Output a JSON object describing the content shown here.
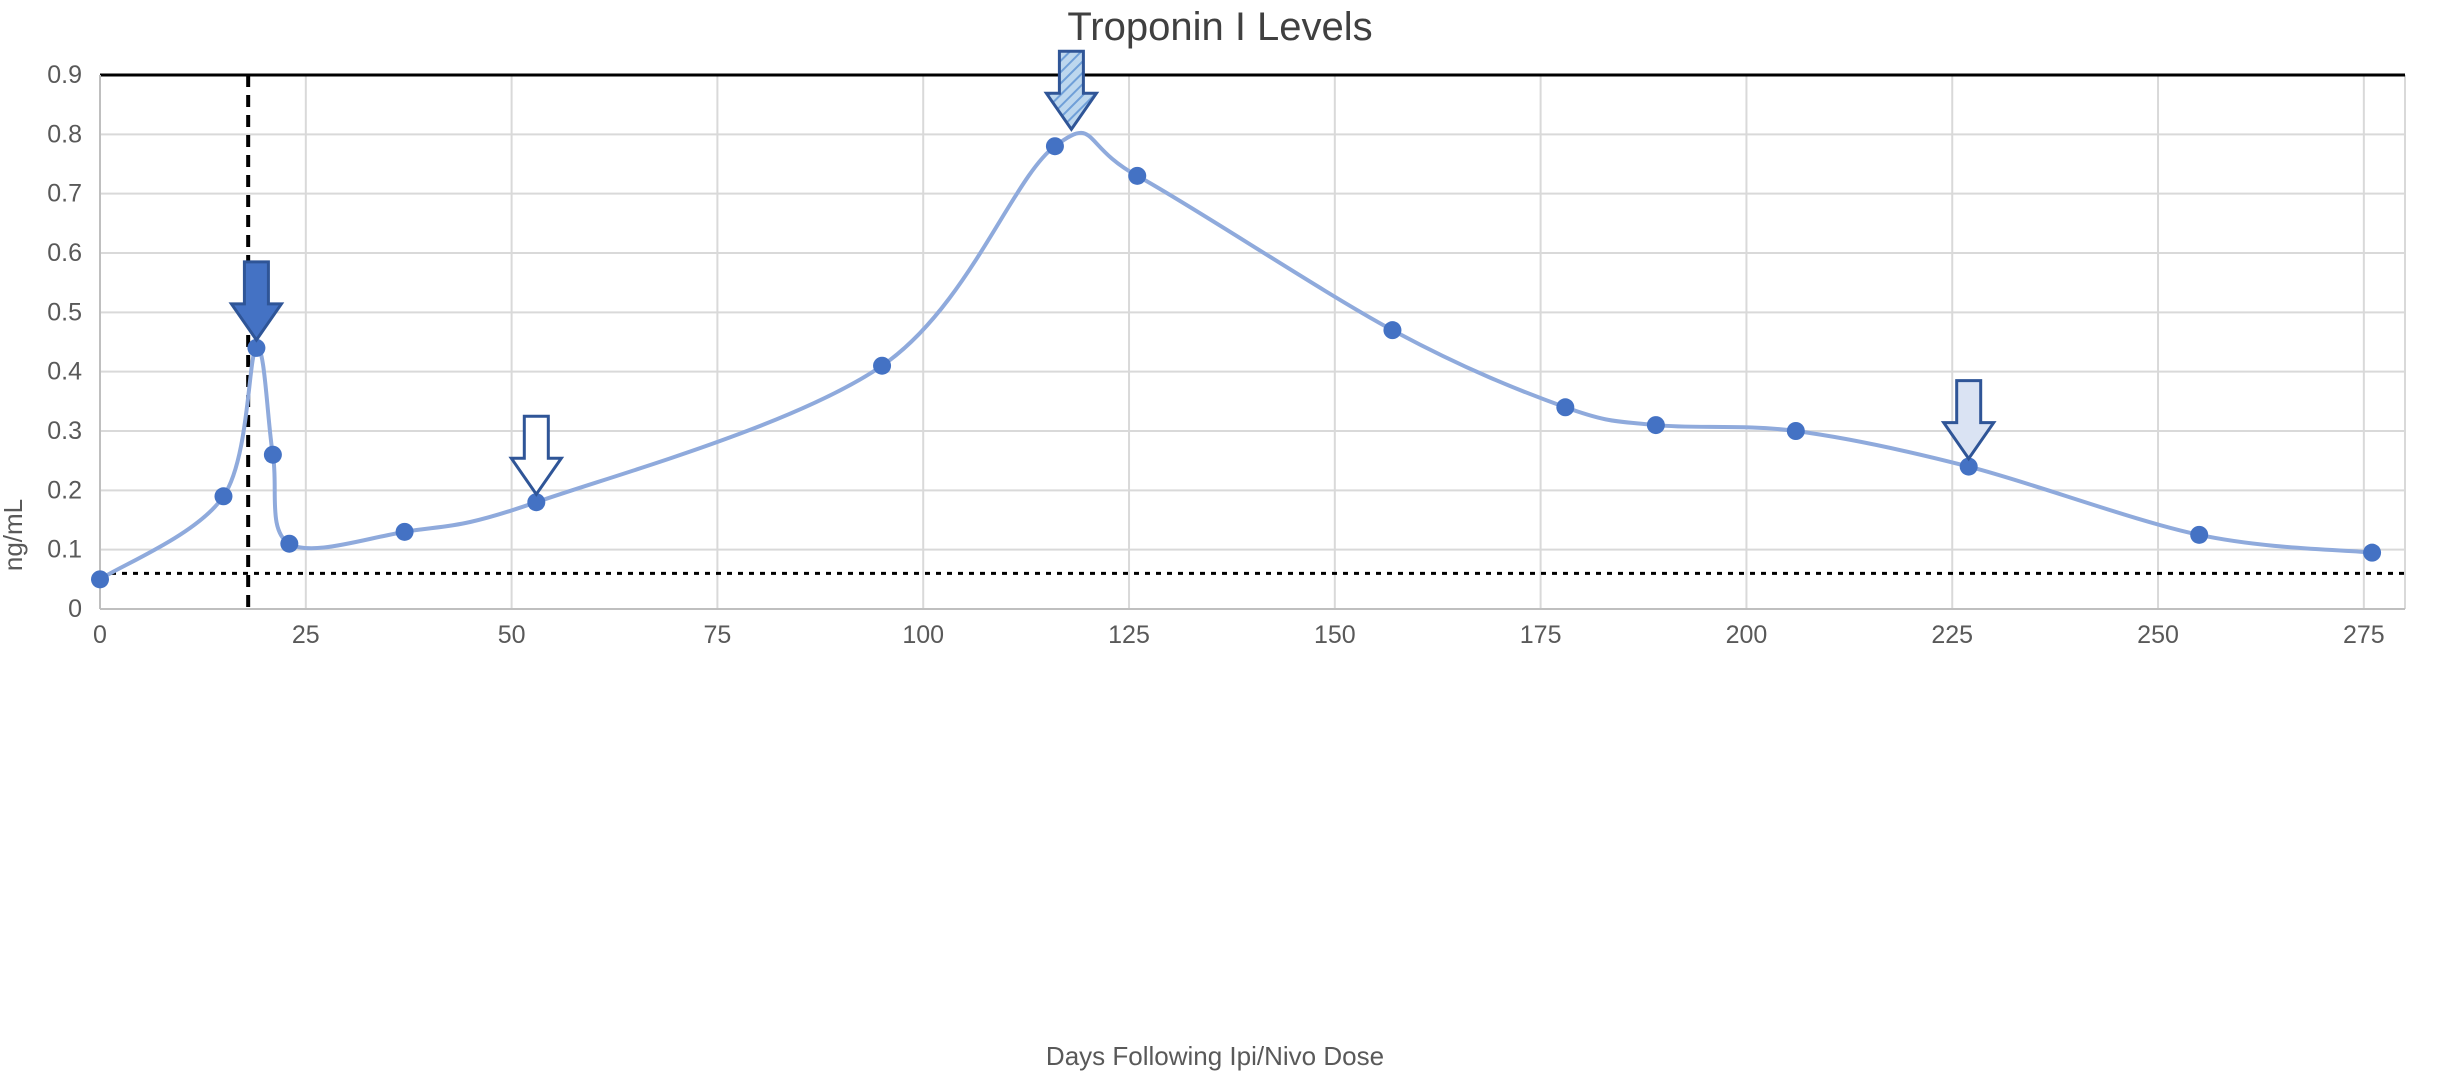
{
  "chart_data": {
    "type": "scatter",
    "title": "Troponin I Levels",
    "xlabel": "Days Following Ipi/Nivo Dose",
    "ylabel": "ng/mL",
    "xlim": [
      0,
      280
    ],
    "ylim": [
      0,
      0.9
    ],
    "x_ticks": [
      0,
      25,
      50,
      75,
      100,
      125,
      150,
      175,
      200,
      225,
      250,
      275
    ],
    "y_ticks": [
      0,
      0.1,
      0.2,
      0.3,
      0.4,
      0.5,
      0.6,
      0.7,
      0.8,
      0.9
    ],
    "x_tick_labels": [
      "0",
      "25",
      "50",
      "75",
      "100",
      "125",
      "150",
      "175",
      "200",
      "225",
      "250",
      "275"
    ],
    "y_tick_labels": [
      "0",
      "0.1",
      "0.2",
      "0.3",
      "0.4",
      "0.5",
      "0.6",
      "0.7",
      "0.8",
      "0.9"
    ],
    "grid": true,
    "smooth_line": true,
    "series": [
      {
        "x": [
          0,
          15,
          19,
          21,
          23,
          37,
          53,
          95,
          116,
          126,
          157,
          178,
          189,
          206,
          227,
          255,
          276
        ],
        "y": [
          0.05,
          0.19,
          0.44,
          0.26,
          0.11,
          0.13,
          0.18,
          0.41,
          0.78,
          0.73,
          0.47,
          0.34,
          0.31,
          0.3,
          0.24,
          0.125,
          0.095
        ]
      }
    ],
    "reference_lines": [
      {
        "orientation": "vertical",
        "x": 18,
        "style": "dashed"
      },
      {
        "orientation": "horizontal",
        "y": 0.06,
        "style": "dotted"
      }
    ],
    "annotations": [
      {
        "type": "down-arrow",
        "x": 19,
        "y": 0.44,
        "fill": "#4472c4",
        "pattern": "solid"
      },
      {
        "type": "down-arrow",
        "x": 53,
        "y": 0.18,
        "fill": "#ffffff",
        "pattern": "hollow"
      },
      {
        "type": "down-arrow",
        "x": 118,
        "y": 0.795,
        "fill": "#9dc3e6",
        "pattern": "striped"
      },
      {
        "type": "down-arrow",
        "x": 227,
        "y": 0.24,
        "fill": "#dae3f3",
        "pattern": "light"
      }
    ],
    "colors": {
      "line": "#8faadc",
      "marker": "#4472c4",
      "arrow_stroke": "#2f5597",
      "grid": "#d9d9d9",
      "text": "#595959"
    }
  }
}
